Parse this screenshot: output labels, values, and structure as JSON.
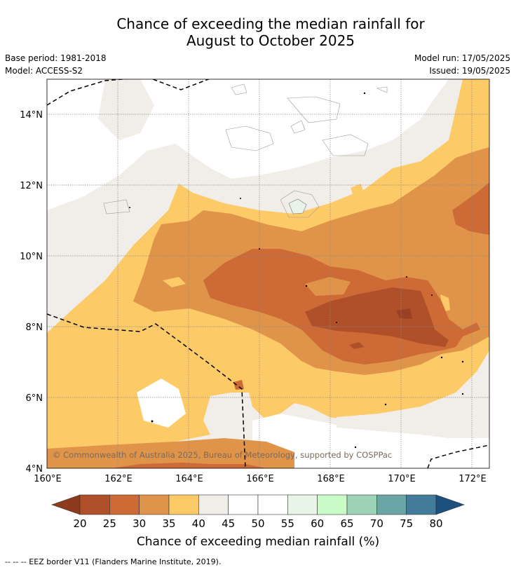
{
  "title": {
    "line1": "Chance of exceeding the median rainfall for",
    "line2": "August to October 2025"
  },
  "info": {
    "base_period": "Base period: 1981-2018",
    "model": "Model: ACCESS-S2",
    "model_run": "Model run: 17/05/2025",
    "issued": "Issued: 19/05/2025"
  },
  "map": {
    "lat_labels": [
      "14°N",
      "12°N",
      "10°N",
      "8°N",
      "6°N",
      "4°N"
    ],
    "lon_labels": [
      "160°E",
      "162°E",
      "164°E",
      "166°E",
      "168°E",
      "170°E",
      "172°E"
    ],
    "copyright": "© Commonwealth of Australia 2025, Bureau of Meteorology, supported by COSPPac"
  },
  "colorbar": {
    "label": "Chance of exceeding median rainfall (%)",
    "ticks": [
      "20",
      "25",
      "30",
      "35",
      "40",
      "45",
      "50",
      "55",
      "60",
      "65",
      "70",
      "75",
      "80"
    ],
    "colors": [
      "#8e3a1c",
      "#b0502a",
      "#cd6a35",
      "#e0944a",
      "#fdca68",
      "#f1ede8",
      "#ffffff",
      "#ffffff",
      "#e8f4e8",
      "#c9fbc6",
      "#9fd3b8",
      "#6ca5a6",
      "#437b9b",
      "#1a4f7e"
    ]
  },
  "footer": "--  --  -- EEZ border V11 (Flanders Marine Institute, 2019)."
}
